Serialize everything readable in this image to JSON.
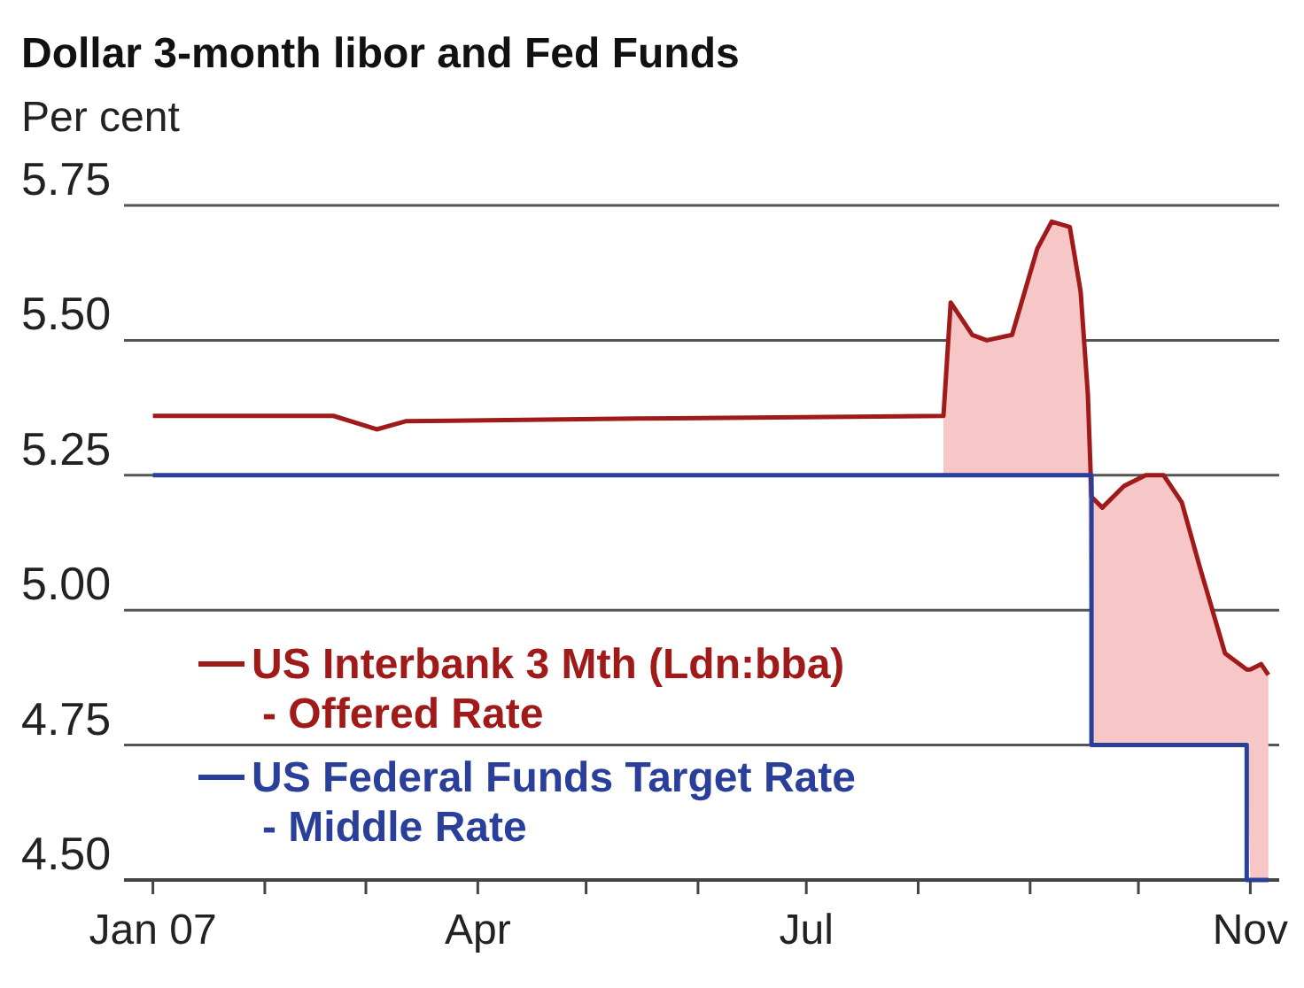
{
  "chart_data": {
    "type": "line",
    "title": "Dollar 3-month libor and Fed Funds",
    "ylabel": "Per cent",
    "xlim": [
      "2006-12-24",
      "2007-11-09"
    ],
    "xticks": [
      {
        "value": "2007-01-01",
        "label": "Jan 07"
      },
      {
        "value": "2007-02-01",
        "label": null
      },
      {
        "value": "2007-03-01",
        "label": null
      },
      {
        "value": "2007-04-01",
        "label": "Apr"
      },
      {
        "value": "2007-05-01",
        "label": null
      },
      {
        "value": "2007-06-01",
        "label": null
      },
      {
        "value": "2007-07-01",
        "label": "Jul"
      },
      {
        "value": "2007-08-01",
        "label": null
      },
      {
        "value": "2007-09-01",
        "label": null
      },
      {
        "value": "2007-10-01",
        "label": null
      },
      {
        "value": "2007-11-01",
        "label": "Nov"
      }
    ],
    "ylim": [
      4.5,
      5.75
    ],
    "yticks": [
      {
        "value": 4.5,
        "label": "4.50"
      },
      {
        "value": 4.75,
        "label": "4.75"
      },
      {
        "value": 5.0,
        "label": "5.00"
      },
      {
        "value": 5.25,
        "label": "5.25"
      },
      {
        "value": 5.5,
        "label": "5.50"
      },
      {
        "value": 5.75,
        "label": "5.75"
      }
    ],
    "grid": "y",
    "legend": "bottom left",
    "line_style": "solid",
    "series": [
      {
        "name": "US Interbank 3 Mth (Ldn:bba)\n- Offered Rate",
        "color": "#a01a1a",
        "x": [
          "2007-01-01",
          "2007-02-20",
          "2007-03-04",
          "2007-03-12",
          "2007-05-15",
          "2007-08-08",
          "2007-08-10",
          "2007-08-16",
          "2007-08-20",
          "2007-08-27",
          "2007-09-03",
          "2007-09-07",
          "2007-09-12",
          "2007-09-15",
          "2007-09-17",
          "2007-09-18",
          "2007-09-21",
          "2007-09-27",
          "2007-10-03",
          "2007-10-08",
          "2007-10-13",
          "2007-10-18",
          "2007-10-25",
          "2007-10-31",
          "2007-11-01",
          "2007-11-04",
          "2007-11-06"
        ],
        "values": [
          5.36,
          5.36,
          5.335,
          5.35,
          5.355,
          5.36,
          5.57,
          5.51,
          5.5,
          5.51,
          5.67,
          5.72,
          5.71,
          5.59,
          5.4,
          5.21,
          5.19,
          5.23,
          5.25,
          5.25,
          5.2,
          5.08,
          4.92,
          4.89,
          4.89,
          4.9,
          4.88
        ],
        "lower": [
          null,
          null,
          null,
          null,
          null,
          5.25,
          5.25,
          5.25,
          5.25,
          5.25,
          5.25,
          5.25,
          5.25,
          5.25,
          5.25,
          4.75,
          4.75,
          4.75,
          4.75,
          4.75,
          4.75,
          4.75,
          4.75,
          4.75,
          4.5,
          4.5,
          4.5
        ],
        "upper": [
          null,
          null,
          null,
          null,
          null,
          5.36,
          5.57,
          5.51,
          5.5,
          5.51,
          5.67,
          5.72,
          5.71,
          5.59,
          5.4,
          5.21,
          5.19,
          5.23,
          5.25,
          5.25,
          5.2,
          5.08,
          4.92,
          4.89,
          4.89,
          4.9,
          4.88
        ]
      },
      {
        "name": "US Federal Funds Target Rate\n- Middle Rate",
        "color": "#2a3f9a",
        "type": "step",
        "x": [
          "2007-01-01",
          "2007-09-18",
          "2007-10-31",
          "2007-11-06"
        ],
        "values": [
          5.25,
          4.75,
          4.5,
          4.5
        ]
      }
    ]
  }
}
